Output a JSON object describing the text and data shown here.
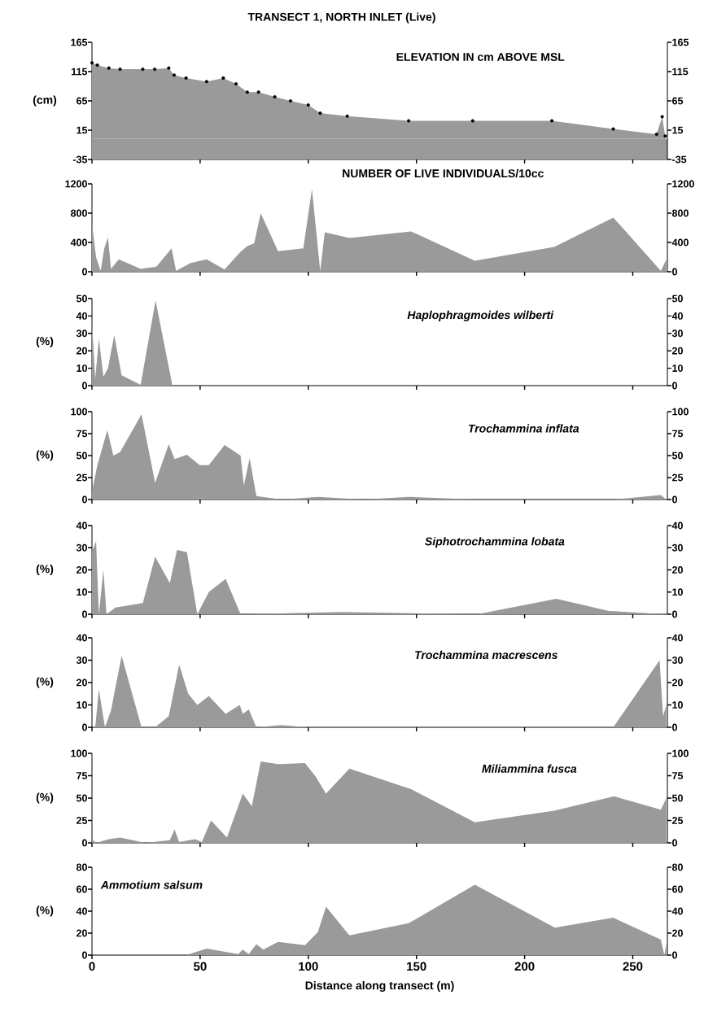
{
  "chart_data": [
    {
      "type": "area",
      "title": "TRANSECT 1, NORTH INLET (Live)",
      "subtitle": "ELEVATION IN cm ABOVE MSL",
      "ylabel": "(cm)",
      "marker": "circle",
      "tick_labels": "y",
      "color": "#9a9a9a",
      "xlim": [
        0,
        266
      ],
      "xticks": [
        0,
        50,
        100,
        150,
        200,
        250
      ],
      "ylim": [
        -35,
        165
      ],
      "yticks": [
        -35,
        15,
        65,
        115,
        165
      ],
      "y2lim": [
        -35,
        165
      ],
      "y2ticks": [
        -35,
        15,
        65,
        115,
        165
      ],
      "x": [
        0,
        2.5,
        7.8,
        13,
        23.5,
        29,
        35.5,
        38,
        43.5,
        53,
        60.7,
        66.6,
        71.8,
        77,
        84.5,
        91.8,
        100,
        105.5,
        118,
        146.4,
        176,
        212.6,
        241,
        261,
        263.6,
        265
      ],
      "values": [
        130,
        126,
        121,
        119,
        119,
        119,
        121,
        109,
        104,
        98,
        104,
        94,
        80,
        80,
        72,
        65,
        58,
        44,
        39,
        31,
        31,
        31,
        17,
        8,
        38,
        5
      ],
      "bands": [
        {
          "axis": "y",
          "from": -35,
          "to": 0,
          "color": "#9a9a9a"
        }
      ]
    },
    {
      "type": "area",
      "title": "NUMBER OF LIVE INDIVIDUALS/10cc",
      "tick_labels": "y",
      "color": "#9a9a9a",
      "xlim": [
        0,
        266
      ],
      "xticks": [
        0,
        50,
        100,
        150,
        200,
        250
      ],
      "ylim": [
        0,
        1200
      ],
      "yticks": [
        0,
        400,
        800,
        1200
      ],
      "y2lim": [
        0,
        1200
      ],
      "y2ticks": [
        0,
        400,
        800,
        1200
      ],
      "x": [
        0,
        1.9,
        4,
        5.7,
        7.4,
        8.8,
        12.4,
        22.5,
        29.8,
        36.8,
        38.9,
        45.6,
        53,
        61.3,
        68.3,
        71.8,
        75,
        78,
        86,
        97.7,
        101.7,
        105.5,
        107.6,
        119,
        147.5,
        177,
        213.7,
        241,
        263,
        265.5
      ],
      "values": [
        660,
        200,
        10,
        320,
        470,
        40,
        170,
        40,
        70,
        320,
        10,
        120,
        170,
        30,
        260,
        350,
        390,
        800,
        280,
        320,
        1130,
        10,
        540,
        460,
        550,
        150,
        340,
        740,
        10,
        170
      ]
    },
    {
      "type": "area",
      "title": "Haplophragmoides wilberti",
      "ylabel": "(%)",
      "tick_labels": "y",
      "color": "#9a9a9a",
      "xlim": [
        0,
        266
      ],
      "xticks": [
        0,
        50,
        100,
        150,
        200,
        250
      ],
      "ylim": [
        0,
        50
      ],
      "yticks": [
        0,
        10,
        20,
        30,
        40,
        50
      ],
      "y2lim": [
        0,
        50
      ],
      "y2ticks": [
        0,
        10,
        20,
        30,
        40,
        50
      ],
      "x": [
        0,
        1.5,
        3.2,
        5.3,
        7.4,
        10.3,
        13.7,
        22.5,
        29.4,
        37.2,
        265.5
      ],
      "values": [
        37,
        4,
        27,
        5,
        10,
        29,
        6,
        0.5,
        49,
        0,
        0
      ]
    },
    {
      "type": "area",
      "title": "Trochammina inflata",
      "ylabel": "(%)",
      "tick_labels": "y",
      "color": "#9a9a9a",
      "xlim": [
        0,
        266
      ],
      "xticks": [
        0,
        50,
        100,
        150,
        200,
        250
      ],
      "ylim": [
        0,
        100
      ],
      "yticks": [
        0,
        25,
        50,
        75,
        100
      ],
      "y2lim": [
        0,
        100
      ],
      "y2ticks": [
        0,
        25,
        50,
        75,
        100
      ],
      "x": [
        0,
        2.5,
        7.1,
        9.9,
        13,
        22.9,
        29.2,
        35.5,
        38.2,
        43.9,
        49.8,
        54,
        61.3,
        68.7,
        70.2,
        72.9,
        76,
        87.6,
        104.4,
        125.4,
        146.4,
        178,
        241,
        263,
        265.5
      ],
      "values": [
        9,
        39,
        79,
        50,
        54,
        97,
        19,
        63,
        46,
        51,
        39,
        39,
        62,
        50,
        16,
        47,
        4,
        0,
        3,
        0,
        3,
        0,
        0,
        5,
        0
      ]
    },
    {
      "type": "area",
      "title": "Siphotrochammina lobata",
      "ylabel": "(%)",
      "tick_labels": "y",
      "color": "#9a9a9a",
      "xlim": [
        0,
        266
      ],
      "xticks": [
        0,
        50,
        100,
        150,
        200,
        250
      ],
      "ylim": [
        0,
        40
      ],
      "yticks": [
        0,
        10,
        20,
        30,
        40
      ],
      "y2lim": [
        0,
        40
      ],
      "y2ticks": [
        0,
        10,
        20,
        30,
        40
      ],
      "x": [
        0,
        1.9,
        3.2,
        5.3,
        6.7,
        10.9,
        23.5,
        29.2,
        36,
        39.3,
        43.9,
        48.7,
        54,
        61.8,
        68.7,
        115,
        178,
        214.7,
        239,
        265.5
      ],
      "values": [
        28,
        33,
        0,
        20,
        0,
        3,
        5,
        26,
        14,
        29,
        28,
        0,
        10,
        16,
        0,
        1,
        0,
        7,
        1.5,
        0
      ]
    },
    {
      "type": "area",
      "title": "Trochammina macrescens",
      "ylabel": "(%)",
      "tick_labels": "y",
      "color": "#9a9a9a",
      "xlim": [
        0,
        266
      ],
      "xticks": [
        0,
        50,
        100,
        150,
        200,
        250
      ],
      "ylim": [
        0,
        40
      ],
      "yticks": [
        0,
        10,
        20,
        30,
        40
      ],
      "y2lim": [
        0,
        40
      ],
      "y2ticks": [
        0,
        10,
        20,
        30,
        40
      ],
      "x": [
        0,
        1.5,
        3.2,
        6,
        8.8,
        13.7,
        22.9,
        29.2,
        35.5,
        40.3,
        44.5,
        48.7,
        54,
        61.8,
        68.3,
        69.7,
        72.5,
        76,
        87.6,
        100,
        241,
        262.4,
        264,
        265.5
      ],
      "values": [
        0,
        0,
        17,
        0,
        7.5,
        32,
        0,
        0,
        5,
        28,
        15,
        10,
        14,
        6,
        10,
        6,
        8,
        0,
        1,
        0,
        0,
        30,
        5,
        10
      ]
    },
    {
      "type": "area",
      "title": "Miliammina fusca",
      "ylabel": "(%)",
      "tick_labels": "y",
      "color": "#9a9a9a",
      "xlim": [
        0,
        266
      ],
      "xticks": [
        0,
        50,
        100,
        150,
        200,
        250
      ],
      "ylim": [
        0,
        100
      ],
      "yticks": [
        0,
        25,
        50,
        75,
        100
      ],
      "y2lim": [
        0,
        100
      ],
      "y2ticks": [
        0,
        25,
        50,
        75,
        100
      ],
      "x": [
        0,
        1.9,
        7.8,
        13,
        24.6,
        36,
        38.2,
        40.3,
        47.7,
        50.8,
        55,
        62.4,
        69.7,
        73.9,
        78,
        86,
        98.5,
        103.4,
        108.2,
        119,
        147.5,
        177,
        213.7,
        241.4,
        263,
        265.5
      ],
      "values": [
        4,
        0,
        4,
        6,
        0,
        3,
        15,
        1,
        4,
        1,
        25,
        6,
        55,
        41,
        91,
        88,
        89,
        74,
        55,
        83,
        60,
        23,
        36,
        52,
        37,
        50
      ]
    },
    {
      "type": "area",
      "title": "Ammotium salsum",
      "ylabel": "(%)",
      "xlabel": "Distance along transect (m)",
      "color": "#9a9a9a",
      "xlim": [
        0,
        266
      ],
      "xticks": [
        0,
        50,
        100,
        150,
        200,
        250
      ],
      "ylim": [
        0,
        80
      ],
      "yticks": [
        0,
        20,
        40,
        60,
        80
      ],
      "y2lim": [
        0,
        80
      ],
      "y2ticks": [
        0,
        20,
        40,
        60,
        80
      ],
      "x": [
        0,
        43.5,
        53,
        67.6,
        69.7,
        72.5,
        76,
        79.2,
        86,
        98.5,
        104.4,
        108.2,
        119,
        146.4,
        177,
        214,
        241,
        263,
        264.6,
        265.5
      ],
      "values": [
        0,
        0,
        6,
        1,
        5,
        1,
        10,
        5,
        12,
        9,
        21,
        44,
        18,
        29,
        64,
        25,
        34,
        14,
        0,
        11
      ]
    }
  ]
}
